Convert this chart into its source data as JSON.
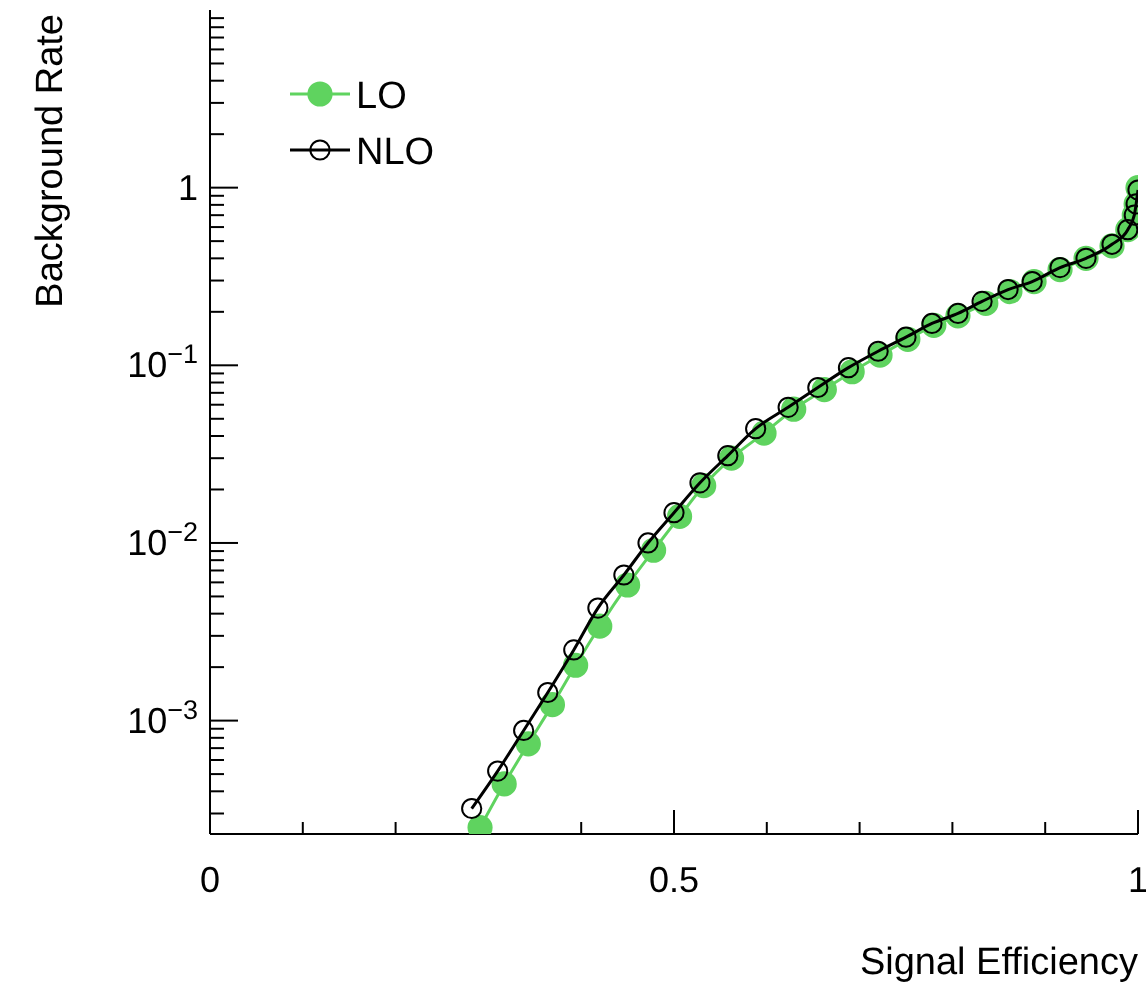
{
  "chart_data": {
    "type": "line",
    "xlabel": "Signal Efficiency",
    "ylabel": "Background Rate",
    "log": "y",
    "grid": false,
    "legend": "top left",
    "xlim": [
      0,
      1
    ],
    "ylim": [
      0.00023,
      10
    ],
    "xticks": [
      0,
      {
        "value": 0.1,
        "label": null
      },
      {
        "value": 0.2,
        "label": null
      },
      {
        "value": 0.3,
        "label": null
      },
      {
        "value": 0.4,
        "label": null
      },
      0.5,
      {
        "value": 0.6,
        "label": null
      },
      {
        "value": 0.7,
        "label": null
      },
      {
        "value": 0.8,
        "label": null
      },
      {
        "value": 0.9,
        "label": null
      },
      1
    ],
    "yticks": [
      {
        "value": 0.0003,
        "label": null
      },
      {
        "value": 0.0004,
        "label": null
      },
      {
        "value": 0.0005,
        "label": null
      },
      {
        "value": 0.0006,
        "label": null
      },
      {
        "value": 0.0007,
        "label": null
      },
      {
        "value": 0.0008,
        "label": null
      },
      {
        "value": 0.0009,
        "label": null
      },
      {
        "value": 0.001,
        "label": "10$^{−3}$"
      },
      {
        "value": 0.002,
        "label": null
      },
      {
        "value": 0.003,
        "label": null
      },
      {
        "value": 0.004,
        "label": null
      },
      {
        "value": 0.005,
        "label": null
      },
      {
        "value": 0.006,
        "label": null
      },
      {
        "value": 0.007,
        "label": null
      },
      {
        "value": 0.008,
        "label": null
      },
      {
        "value": 0.009,
        "label": null
      },
      {
        "value": 0.01,
        "label": "10$^{−2}$"
      },
      {
        "value": 0.02,
        "label": null
      },
      {
        "value": 0.03,
        "label": null
      },
      {
        "value": 0.04,
        "label": null
      },
      {
        "value": 0.05,
        "label": null
      },
      {
        "value": 0.06,
        "label": null
      },
      {
        "value": 0.07,
        "label": null
      },
      {
        "value": 0.08,
        "label": null
      },
      {
        "value": 0.09,
        "label": null
      },
      {
        "value": 0.1,
        "label": "10$^{−1}$"
      },
      {
        "value": 0.2,
        "label": null
      },
      {
        "value": 0.3,
        "label": null
      },
      {
        "value": 0.4,
        "label": null
      },
      {
        "value": 0.5,
        "label": null
      },
      {
        "value": 0.6,
        "label": null
      },
      {
        "value": 0.7,
        "label": null
      },
      {
        "value": 0.8,
        "label": null
      },
      {
        "value": 0.9,
        "label": null
      },
      1,
      {
        "value": 2,
        "label": null
      },
      {
        "value": 3,
        "label": null
      },
      {
        "value": 4,
        "label": null
      },
      {
        "value": 5,
        "label": null
      },
      {
        "value": 6,
        "label": null
      },
      {
        "value": 7,
        "label": null
      },
      {
        "value": 8,
        "label": null
      },
      {
        "value": 9,
        "label": null
      }
    ],
    "series": [
      {
        "name": "LO",
        "color": "#5fd35f",
        "marker": "circle",
        "x": [
          0.291,
          0.317,
          0.343,
          0.369,
          0.394,
          0.42,
          0.45,
          0.478,
          0.506,
          0.532,
          0.562,
          0.597,
          0.629,
          0.662,
          0.692,
          0.722,
          0.752,
          0.78,
          0.806,
          0.836,
          0.862,
          0.888,
          0.916,
          0.944,
          0.972,
          0.989,
          0.996,
          0.998,
          1.0
        ],
        "values": [
          0.00025,
          0.00044,
          0.00074,
          0.00123,
          0.00205,
          0.0034,
          0.0058,
          0.0091,
          0.0141,
          0.021,
          0.03,
          0.0415,
          0.0566,
          0.073,
          0.092,
          0.114,
          0.14,
          0.168,
          0.19,
          0.223,
          0.26,
          0.296,
          0.346,
          0.4,
          0.47,
          0.58,
          0.7,
          0.81,
          1.0
        ]
      },
      {
        "name": "NLO",
        "color": "#000000",
        "marker": "circle-open",
        "x": [
          0.282,
          0.31,
          0.338,
          0.364,
          0.392,
          0.418,
          0.446,
          0.472,
          0.5,
          0.528,
          0.558,
          0.588,
          0.623,
          0.655,
          0.688,
          0.72,
          0.75,
          0.778,
          0.806,
          0.832,
          0.86,
          0.886,
          0.916,
          0.944,
          0.972,
          0.989,
          0.996,
          0.998,
          1.0
        ],
        "values": [
          0.00032,
          0.00052,
          0.00088,
          0.00144,
          0.0025,
          0.0043,
          0.0066,
          0.01,
          0.0148,
          0.0218,
          0.031,
          0.044,
          0.058,
          0.075,
          0.097,
          0.12,
          0.144,
          0.172,
          0.196,
          0.229,
          0.267,
          0.296,
          0.355,
          0.4,
          0.48,
          0.58,
          0.7,
          0.81,
          0.97
        ]
      }
    ]
  }
}
